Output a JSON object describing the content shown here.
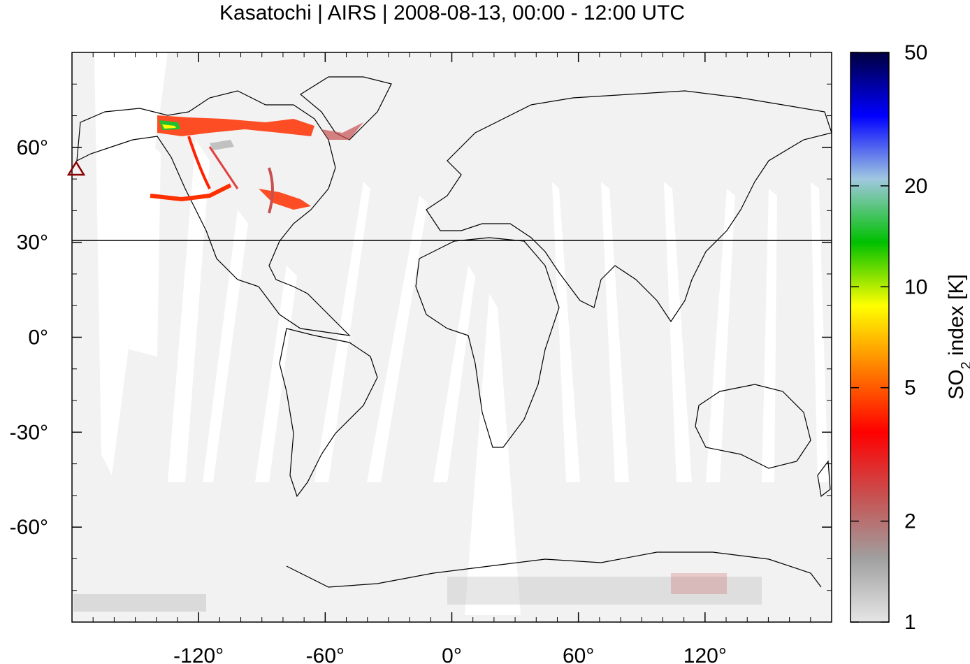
{
  "figure": {
    "title": "Kasatochi | AIRS | 2008-08-13, 00:00 - 12:00 UTC"
  },
  "map": {
    "x_ticks": [
      "-120°",
      "-60°",
      "0°",
      "60°",
      "120°"
    ],
    "y_ticks": [
      "60°",
      "30°",
      "0°",
      "-30°",
      "-60°"
    ],
    "reference_line_latitude": 30,
    "volcano_marker": {
      "name": "Kasatochi",
      "lon": -175.5,
      "lat": 52.2,
      "symbol": "triangle",
      "color": "#8b0000"
    },
    "background_color": "#f2f2f2",
    "swath_gap_color": "#ffffff"
  },
  "colorbar": {
    "label_main": "SO",
    "label_sub": "2",
    "label_rest": " index [K]",
    "scale": "log",
    "range": [
      1,
      50
    ],
    "ticks": [
      "50",
      "20",
      "10",
      "5",
      "2",
      "1"
    ],
    "stops": [
      "#e6e6e6",
      "#a0a0a0",
      "#c85050",
      "#ff0000",
      "#ff7f00",
      "#ffff00",
      "#00c000",
      "#a0c8e0",
      "#0000ff",
      "#000040"
    ]
  },
  "chart_data": {
    "type": "heatmap",
    "title": "Kasatochi | AIRS | 2008-08-13, 00:00 - 12:00 UTC",
    "xlim": [
      -180,
      180
    ],
    "ylim": [
      -90,
      90
    ],
    "x_tick_values": [
      -120,
      -60,
      0,
      60,
      120
    ],
    "y_tick_values": [
      60,
      30,
      0,
      -30,
      -60
    ],
    "colorbar_label": "SO2 index [K]",
    "colorbar_range": [
      1,
      50
    ],
    "colorbar_scale": "log"
  }
}
